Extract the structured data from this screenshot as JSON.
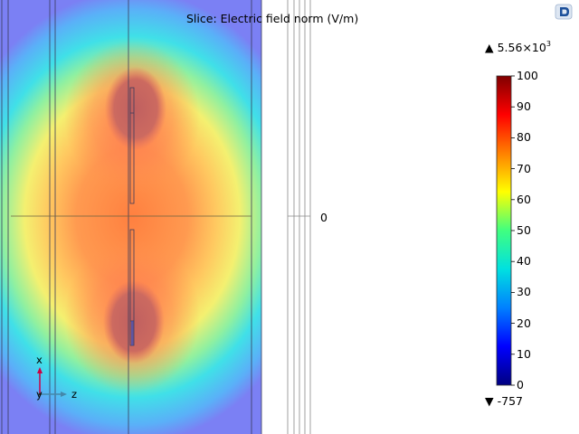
{
  "title": "Slice: Electric field norm (V/m)",
  "colorbar": {
    "max_prefix": "▲",
    "max_mantissa": "5.56×10",
    "max_exponent": "3",
    "min_prefix": "▼",
    "min_value": "-757",
    "ticks": [
      "100",
      "90",
      "80",
      "70",
      "60",
      "50",
      "40",
      "30",
      "20",
      "10",
      "0"
    ],
    "colormap": [
      "#000080",
      "#0000ff",
      "#0080ff",
      "#00e0e0",
      "#40ff80",
      "#ffff00",
      "#ff8000",
      "#ff0000",
      "#800000"
    ]
  },
  "axis": {
    "zero_label": "0"
  },
  "triad": {
    "x_label": "x",
    "y_label": "y",
    "z_label": "z"
  },
  "colors": {
    "x_axis_arrow": "#cc0044",
    "z_axis_arrow": "#4488aa",
    "background": "#ffffff",
    "logo": "#1b4f9a"
  },
  "icons": {
    "corner": "comsol-logo-icon"
  }
}
